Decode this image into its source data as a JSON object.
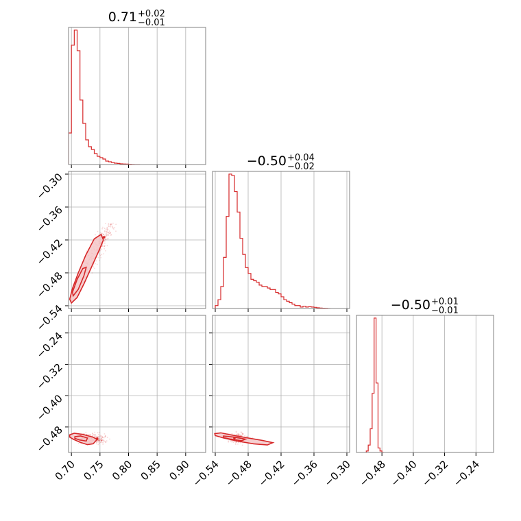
{
  "figure": {
    "color": "#d62728",
    "fill_color": "#f4c7c8"
  },
  "chart_data": [
    {
      "type": "histogram",
      "panel": "hist-0",
      "title": {
        "value": "0.71",
        "plus": "+0.02",
        "minus": "−0.01"
      },
      "xlim": [
        0.695,
        0.935
      ],
      "xgrid": [
        0.7,
        0.75,
        0.8,
        0.85,
        0.9
      ],
      "x": [
        0.695,
        0.7,
        0.705,
        0.71,
        0.715,
        0.72,
        0.725,
        0.73,
        0.735,
        0.74,
        0.745,
        0.75,
        0.755,
        0.76,
        0.765,
        0.77,
        0.775,
        0.78,
        0.785,
        0.79,
        0.795,
        0.8,
        0.805,
        0.81,
        0.815
      ],
      "y": [
        0.23,
        0.87,
        0.98,
        0.83,
        0.47,
        0.3,
        0.18,
        0.13,
        0.11,
        0.08,
        0.06,
        0.05,
        0.04,
        0.025,
        0.02,
        0.015,
        0.01,
        0.008,
        0.005,
        0.004,
        0.003,
        0.002,
        0.001,
        0.0,
        0.0
      ]
    },
    {
      "type": "contour",
      "panel": "scatter-1-0",
      "xlim": [
        0.695,
        0.935
      ],
      "ylim": [
        -0.545,
        -0.295
      ],
      "xgrid": [
        0.7,
        0.75,
        0.8,
        0.85,
        0.9
      ],
      "ygrid": [
        -0.3,
        -0.36,
        -0.42,
        -0.48,
        -0.54
      ],
      "ytick_labels": [
        "−0.30",
        "−0.36",
        "−0.42",
        "−0.48",
        "−0.54"
      ],
      "mode_point": [
        0.757,
        -0.415
      ],
      "contour_outer": [
        [
          0.697,
          -0.528
        ],
        [
          0.7,
          -0.535
        ],
        [
          0.71,
          -0.525
        ],
        [
          0.722,
          -0.5
        ],
        [
          0.735,
          -0.47
        ],
        [
          0.748,
          -0.44
        ],
        [
          0.756,
          -0.42
        ],
        [
          0.752,
          -0.41
        ],
        [
          0.74,
          -0.418
        ],
        [
          0.725,
          -0.448
        ],
        [
          0.712,
          -0.48
        ],
        [
          0.702,
          -0.508
        ]
      ],
      "contour_inner": [
        [
          0.703,
          -0.522
        ],
        [
          0.712,
          -0.51
        ],
        [
          0.722,
          -0.485
        ],
        [
          0.726,
          -0.47
        ],
        [
          0.72,
          -0.472
        ],
        [
          0.71,
          -0.492
        ],
        [
          0.702,
          -0.515
        ]
      ]
    },
    {
      "type": "histogram",
      "panel": "hist-1",
      "title": {
        "value": "−0.50",
        "plus": "+0.04",
        "minus": "−0.02"
      },
      "xlim": [
        -0.545,
        -0.295
      ],
      "xgrid": [
        -0.54,
        -0.48,
        -0.42,
        -0.36,
        -0.3
      ],
      "x": [
        -0.54,
        -0.535,
        -0.53,
        -0.525,
        -0.52,
        -0.515,
        -0.51,
        -0.505,
        -0.5,
        -0.495,
        -0.49,
        -0.485,
        -0.48,
        -0.475,
        -0.47,
        -0.465,
        -0.46,
        -0.455,
        -0.45,
        -0.445,
        -0.44,
        -0.435,
        -0.43,
        -0.425,
        -0.42,
        -0.415,
        -0.41,
        -0.405,
        -0.4,
        -0.395,
        -0.39,
        -0.385,
        -0.38,
        -0.375,
        -0.37,
        -0.365,
        -0.36,
        -0.355,
        -0.35,
        -0.345,
        -0.34,
        -0.335
      ],
      "y": [
        0.02,
        0.06,
        0.15,
        0.35,
        0.63,
        0.92,
        0.91,
        0.8,
        0.66,
        0.48,
        0.37,
        0.28,
        0.24,
        0.2,
        0.19,
        0.18,
        0.16,
        0.15,
        0.15,
        0.14,
        0.13,
        0.13,
        0.11,
        0.1,
        0.08,
        0.06,
        0.05,
        0.04,
        0.03,
        0.02,
        0.02,
        0.01,
        0.015,
        0.01,
        0.012,
        0.01,
        0.008,
        0.005,
        0.003,
        0.002,
        0.001,
        0.0
      ]
    },
    {
      "type": "contour",
      "panel": "scatter-2-0",
      "xlim": [
        0.695,
        0.935
      ],
      "ylim": [
        -0.545,
        -0.195
      ],
      "xgrid": [
        0.7,
        0.75,
        0.8,
        0.85,
        0.9
      ],
      "ygrid": [
        -0.24,
        -0.32,
        -0.4,
        -0.48
      ],
      "ytick_labels": [
        "−0.24",
        "−0.32",
        "−0.40",
        "−0.48"
      ],
      "xtick_labels": [
        "0.70",
        "0.75",
        "0.80",
        "0.85",
        "0.90"
      ],
      "mode_point": [
        0.745,
        -0.51
      ],
      "contour_outer": [
        [
          0.697,
          -0.5
        ],
        [
          0.705,
          -0.496
        ],
        [
          0.72,
          -0.499
        ],
        [
          0.738,
          -0.506
        ],
        [
          0.745,
          -0.512
        ],
        [
          0.738,
          -0.523
        ],
        [
          0.728,
          -0.525
        ],
        [
          0.715,
          -0.519
        ],
        [
          0.703,
          -0.511
        ],
        [
          0.697,
          -0.506
        ]
      ],
      "contour_inner": [
        [
          0.706,
          -0.505
        ],
        [
          0.716,
          -0.503
        ],
        [
          0.728,
          -0.508
        ],
        [
          0.726,
          -0.516
        ],
        [
          0.714,
          -0.513
        ],
        [
          0.706,
          -0.509
        ]
      ]
    },
    {
      "type": "contour",
      "panel": "scatter-2-1",
      "xlim": [
        -0.545,
        -0.295
      ],
      "ylim": [
        -0.545,
        -0.195
      ],
      "xgrid": [
        -0.54,
        -0.48,
        -0.42,
        -0.36,
        -0.3
      ],
      "ygrid": [
        -0.24,
        -0.32,
        -0.4,
        -0.48
      ],
      "xtick_labels": [
        "−0.54",
        "−0.48",
        "−0.42",
        "−0.36",
        "−0.30"
      ],
      "mode_point": [
        -0.505,
        -0.508
      ],
      "contour_outer": [
        [
          -0.541,
          -0.497
        ],
        [
          -0.53,
          -0.495
        ],
        [
          -0.505,
          -0.502
        ],
        [
          -0.48,
          -0.508
        ],
        [
          -0.455,
          -0.514
        ],
        [
          -0.435,
          -0.52
        ],
        [
          -0.445,
          -0.526
        ],
        [
          -0.47,
          -0.523
        ],
        [
          -0.5,
          -0.516
        ],
        [
          -0.525,
          -0.508
        ],
        [
          -0.54,
          -0.502
        ]
      ],
      "contour_inner": [
        [
          -0.525,
          -0.503
        ],
        [
          -0.505,
          -0.506
        ],
        [
          -0.485,
          -0.511
        ],
        [
          -0.492,
          -0.515
        ],
        [
          -0.512,
          -0.511
        ],
        [
          -0.525,
          -0.507
        ]
      ]
    },
    {
      "type": "histogram",
      "panel": "hist-2",
      "title": {
        "value": "−0.50",
        "plus": "+0.01",
        "minus": "−0.01"
      },
      "xlim": [
        -0.545,
        -0.195
      ],
      "xgrid": [
        -0.48,
        -0.4,
        -0.32,
        -0.24
      ],
      "xtick_labels": [
        "−0.48",
        "−0.40",
        "−0.32",
        "−0.24"
      ],
      "x": [
        -0.52,
        -0.515,
        -0.51,
        -0.505,
        -0.5,
        -0.495,
        -0.49,
        -0.485,
        -0.48
      ],
      "y": [
        0.01,
        0.05,
        0.16,
        0.4,
        0.91,
        0.47,
        0.03,
        0.01,
        0.0
      ]
    }
  ]
}
